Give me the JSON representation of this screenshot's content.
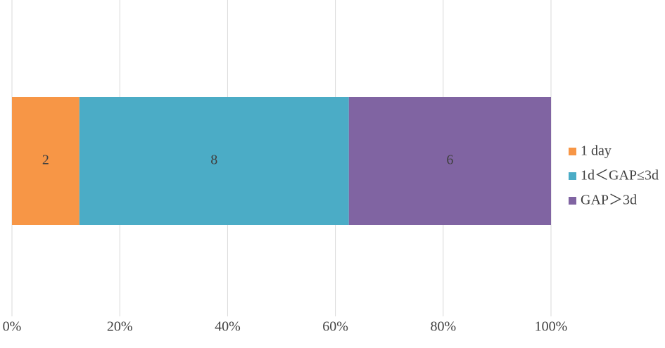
{
  "chart_data": {
    "type": "bar",
    "orientation": "horizontal",
    "stacking": "percent",
    "categories": [
      null
    ],
    "series": [
      {
        "name": "1 day",
        "color": "#f79646",
        "values": [
          2
        ]
      },
      {
        "name": "1d＜GAP≤3d",
        "color": "#4bacc6",
        "values": [
          8
        ]
      },
      {
        "name": "GAP＞3d",
        "color": "#8064a2",
        "values": [
          6
        ]
      }
    ],
    "xlim": [
      0,
      100
    ],
    "xticks": [
      {
        "value": 0,
        "label": "0%"
      },
      {
        "value": 20,
        "label": "20%"
      },
      {
        "value": 40,
        "label": "40%"
      },
      {
        "value": 60,
        "label": "60%"
      },
      {
        "value": 80,
        "label": "80%"
      },
      {
        "value": 100,
        "label": "100%"
      }
    ],
    "grid": true,
    "legend": "right"
  }
}
